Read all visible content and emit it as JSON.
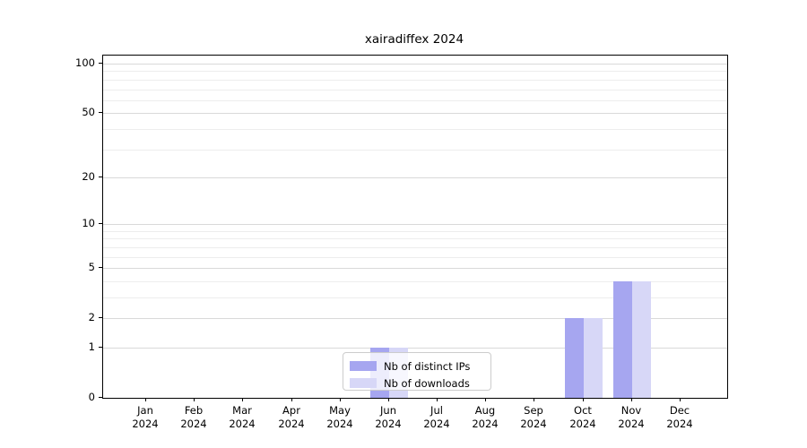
{
  "chart_data": {
    "type": "bar",
    "title": "xairadiffex 2024",
    "categories": [
      "Jan 2024",
      "Feb 2024",
      "Mar 2024",
      "Apr 2024",
      "May 2024",
      "Jun 2024",
      "Jul 2024",
      "Aug 2024",
      "Sep 2024",
      "Oct 2024",
      "Nov 2024",
      "Dec 2024"
    ],
    "series": [
      {
        "name": "Nb of distinct IPs",
        "color": "#a6a6f0",
        "values": [
          0,
          0,
          0,
          0,
          0,
          1,
          0,
          0,
          0,
          2,
          4,
          0
        ]
      },
      {
        "name": "Nb of downloads",
        "color": "#d7d7f7",
        "values": [
          0,
          0,
          0,
          0,
          0,
          1,
          0,
          0,
          0,
          2,
          4,
          0
        ]
      }
    ],
    "yscale": "log10(1+v)",
    "ylim": [
      0,
      112
    ],
    "y_major_ticks": [
      0,
      1,
      2,
      5,
      10,
      20,
      50,
      100
    ],
    "y_minor_ticks": [
      3,
      4,
      6,
      7,
      8,
      9,
      30,
      40,
      60,
      70,
      80,
      90
    ],
    "grid": "horizontal",
    "legend_position": "inside-bottom-center",
    "colors": {
      "grid_major": "#d9d9d9",
      "grid_minor": "#ededed",
      "axis": "#000000",
      "legend_border": "#cccccc"
    }
  }
}
